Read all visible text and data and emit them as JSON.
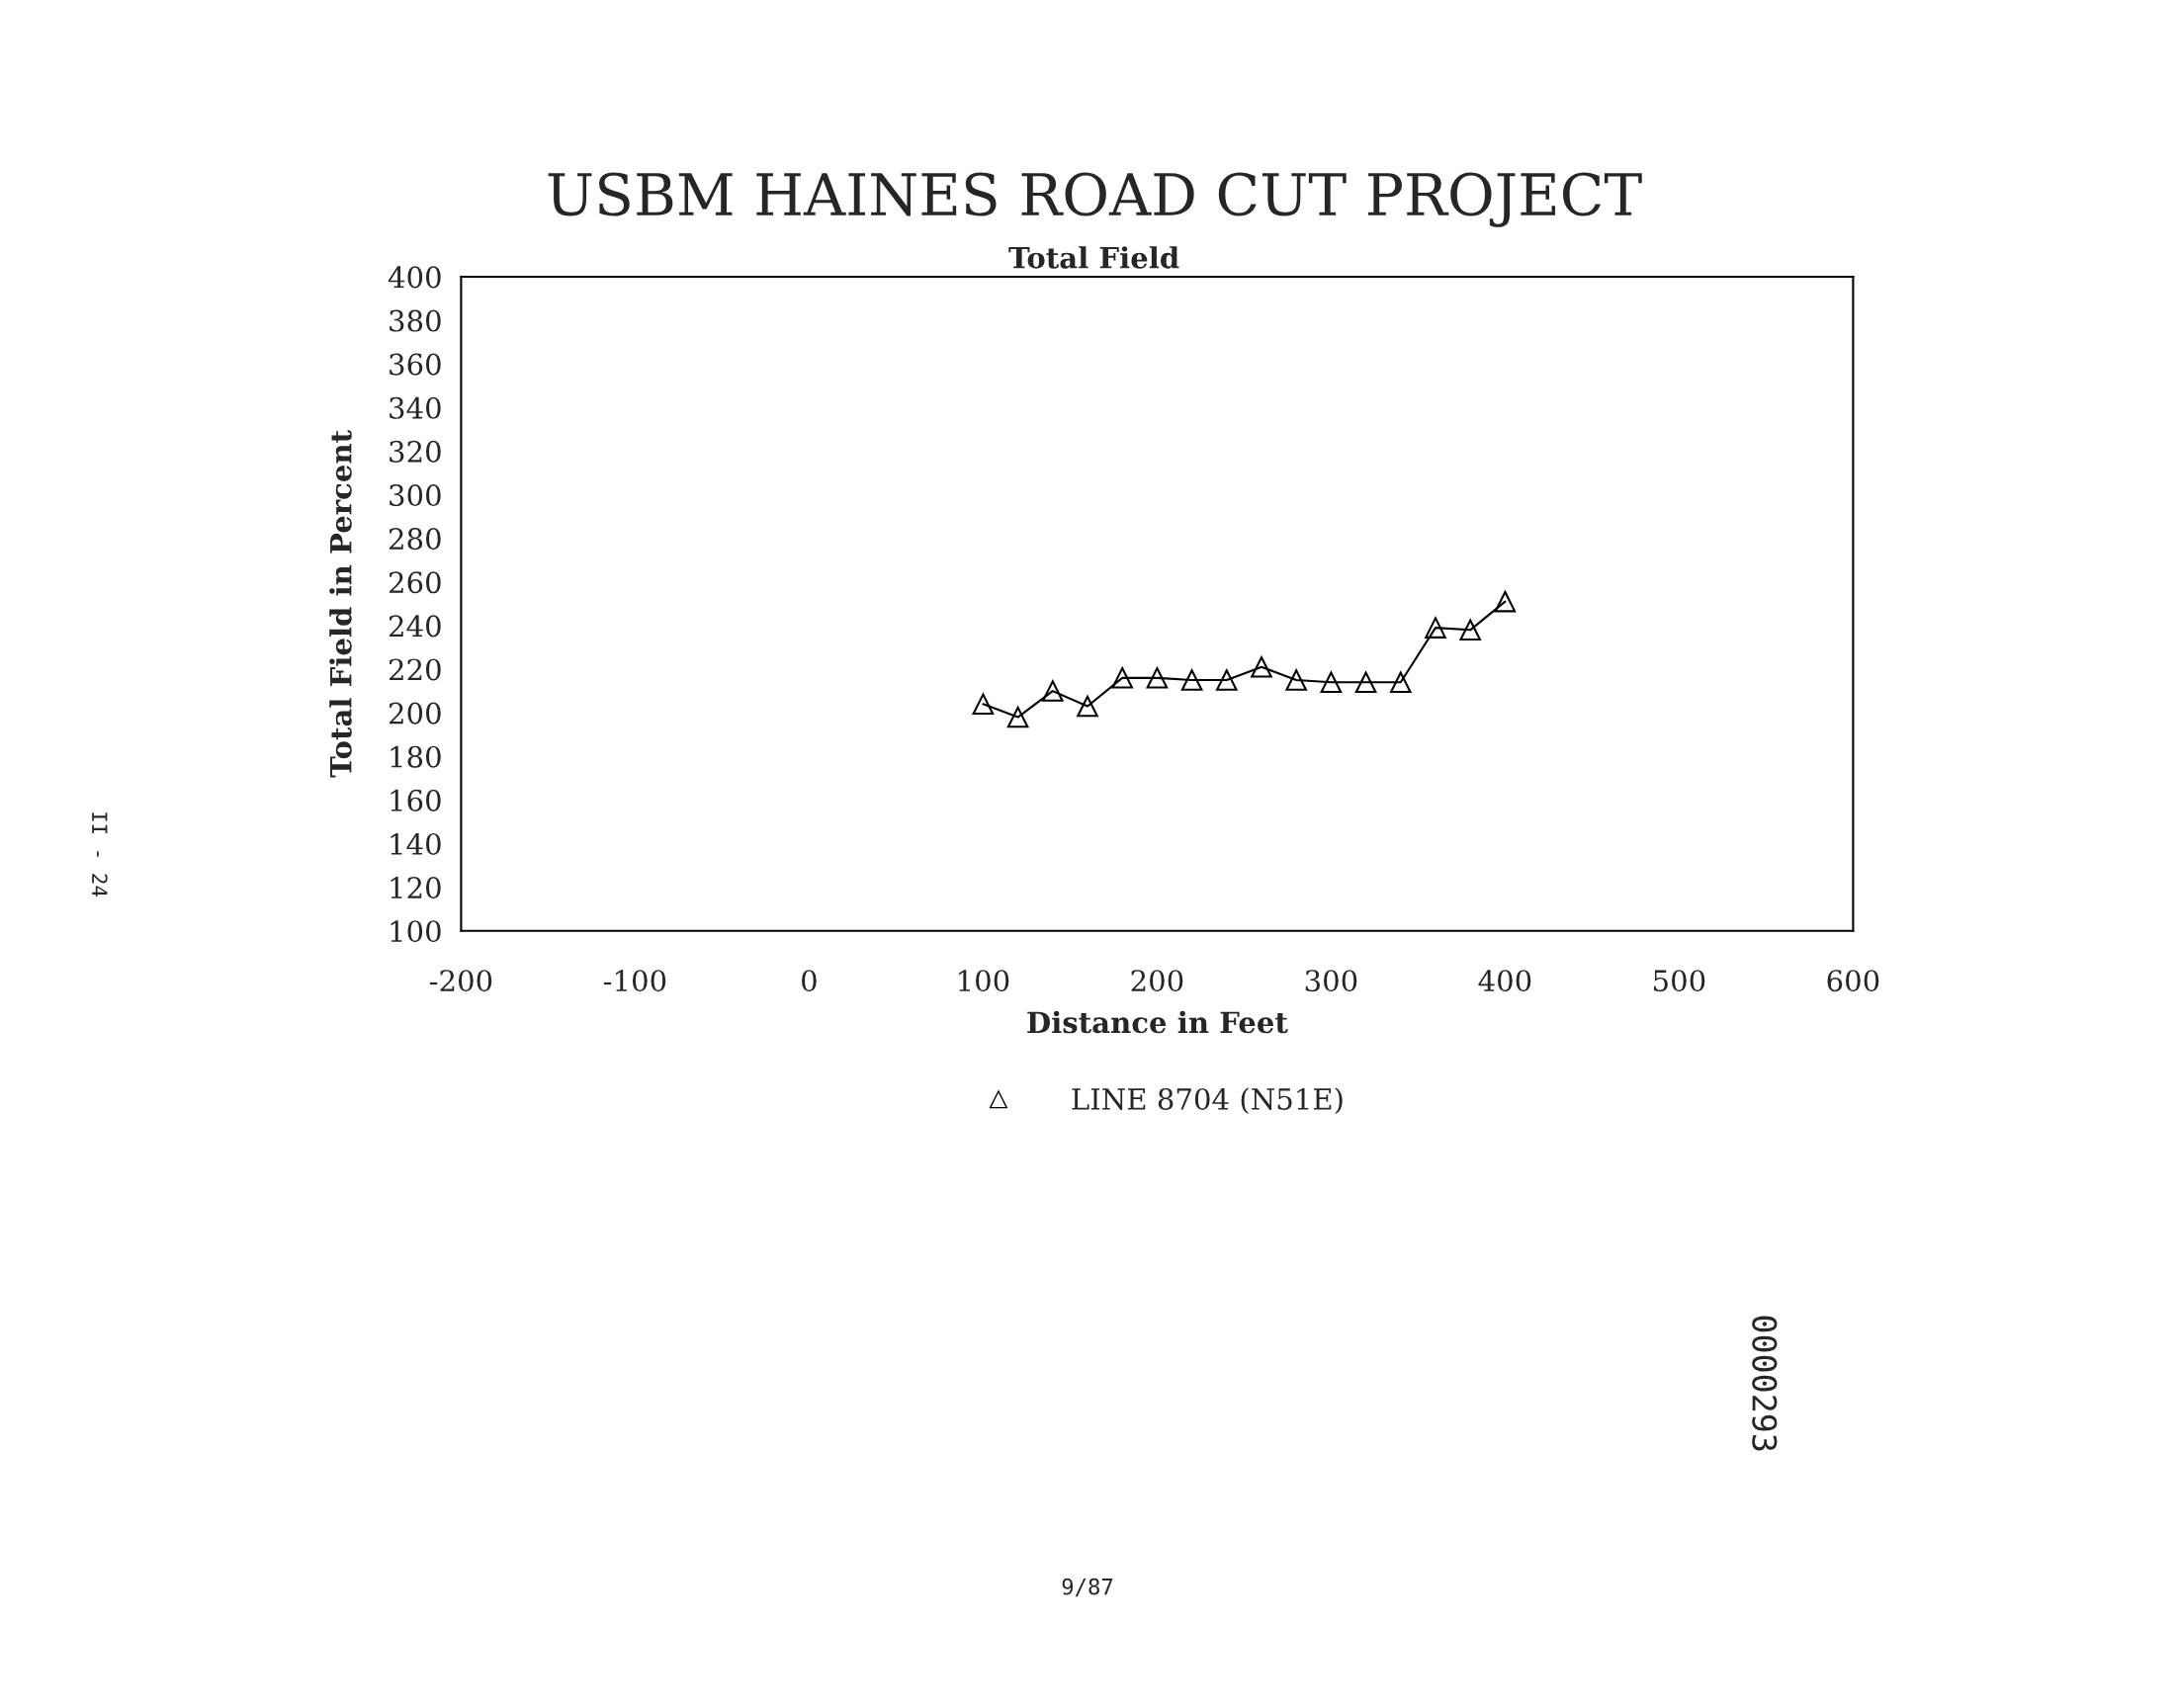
{
  "chart_data": {
    "type": "line",
    "title": "USBM HAINES ROAD CUT PROJECT",
    "subtitle": "Total Field",
    "xlabel": "Distance in Feet",
    "ylabel": "Total Field in Percent",
    "x": [
      100,
      120,
      140,
      160,
      180,
      200,
      220,
      240,
      260,
      280,
      300,
      320,
      340,
      360,
      380,
      400
    ],
    "series": [
      {
        "name": "LINE 8704 (N51E)",
        "color": "#000000",
        "values": [
          204,
          198,
          210,
          203,
          216,
          216,
          215,
          215,
          221,
          215,
          214,
          214,
          214,
          239,
          238,
          251
        ]
      }
    ],
    "marker": "triangle",
    "line_style": "solid",
    "legend": "bottom",
    "grid": false,
    "xlim": [
      -200,
      600
    ],
    "xticks": [
      -200,
      -100,
      0,
      100,
      200,
      300,
      400,
      500,
      600
    ],
    "ylim": [
      100,
      400
    ],
    "yticks": [
      100,
      120,
      140,
      160,
      180,
      200,
      220,
      240,
      260,
      280,
      300,
      320,
      340,
      360,
      380,
      400
    ],
    "annotations": [
      "9/87",
      "II - 24",
      "0000293"
    ]
  }
}
